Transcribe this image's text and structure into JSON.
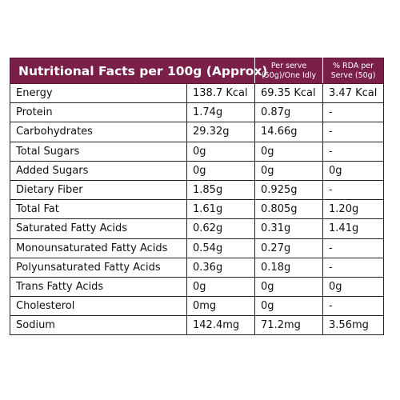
{
  "header": {
    "title": "Nutritional Facts per 100g (Approx)",
    "per_serve_line1": "Per serve",
    "per_serve_line2": "(50g)/One Idly",
    "rda_line1": "% RDA per",
    "rda_line2": "Serve (50g)"
  },
  "rows": [
    {
      "name": "Energy",
      "per100": "138.7 Kcal",
      "perServe": "69.35 Kcal",
      "rda": "3.47 Kcal"
    },
    {
      "name": "Protein",
      "per100": "1.74g",
      "perServe": "0.87g",
      "rda": "-"
    },
    {
      "name": "Carbohydrates",
      "per100": "29.32g",
      "perServe": "14.66g",
      "rda": "-"
    },
    {
      "name": "Total Sugars",
      "per100": "0g",
      "perServe": "0g",
      "rda": "-"
    },
    {
      "name": "Added Sugars",
      "per100": "0g",
      "perServe": "0g",
      "rda": "0g"
    },
    {
      "name": "Dietary Fiber",
      "per100": "1.85g",
      "perServe": "0.925g",
      "rda": "-"
    },
    {
      "name": "Total Fat",
      "per100": "1.61g",
      "perServe": "0.805g",
      "rda": "1.20g"
    },
    {
      "name": "Saturated Fatty Acids",
      "per100": "0.62g",
      "perServe": "0.31g",
      "rda": "1.41g"
    },
    {
      "name": "Monounsaturated Fatty Acids",
      "per100": "0.54g",
      "perServe": "0.27g",
      "rda": "-"
    },
    {
      "name": "Polyunsaturated Fatty Acids",
      "per100": "0.36g",
      "perServe": "0.18g",
      "rda": "-"
    },
    {
      "name": "Trans Fatty Acids",
      "per100": "0g",
      "perServe": "0g",
      "rda": "0g"
    },
    {
      "name": "Cholesterol",
      "per100": "0mg",
      "perServe": "0g",
      "rda": "-"
    },
    {
      "name": "Sodium",
      "per100": "142.4mg",
      "perServe": "71.2mg",
      "rda": "3.56mg"
    }
  ],
  "colors": {
    "header_background": "#7a1f48",
    "header_text": "#ffffff",
    "border": "#222222"
  }
}
